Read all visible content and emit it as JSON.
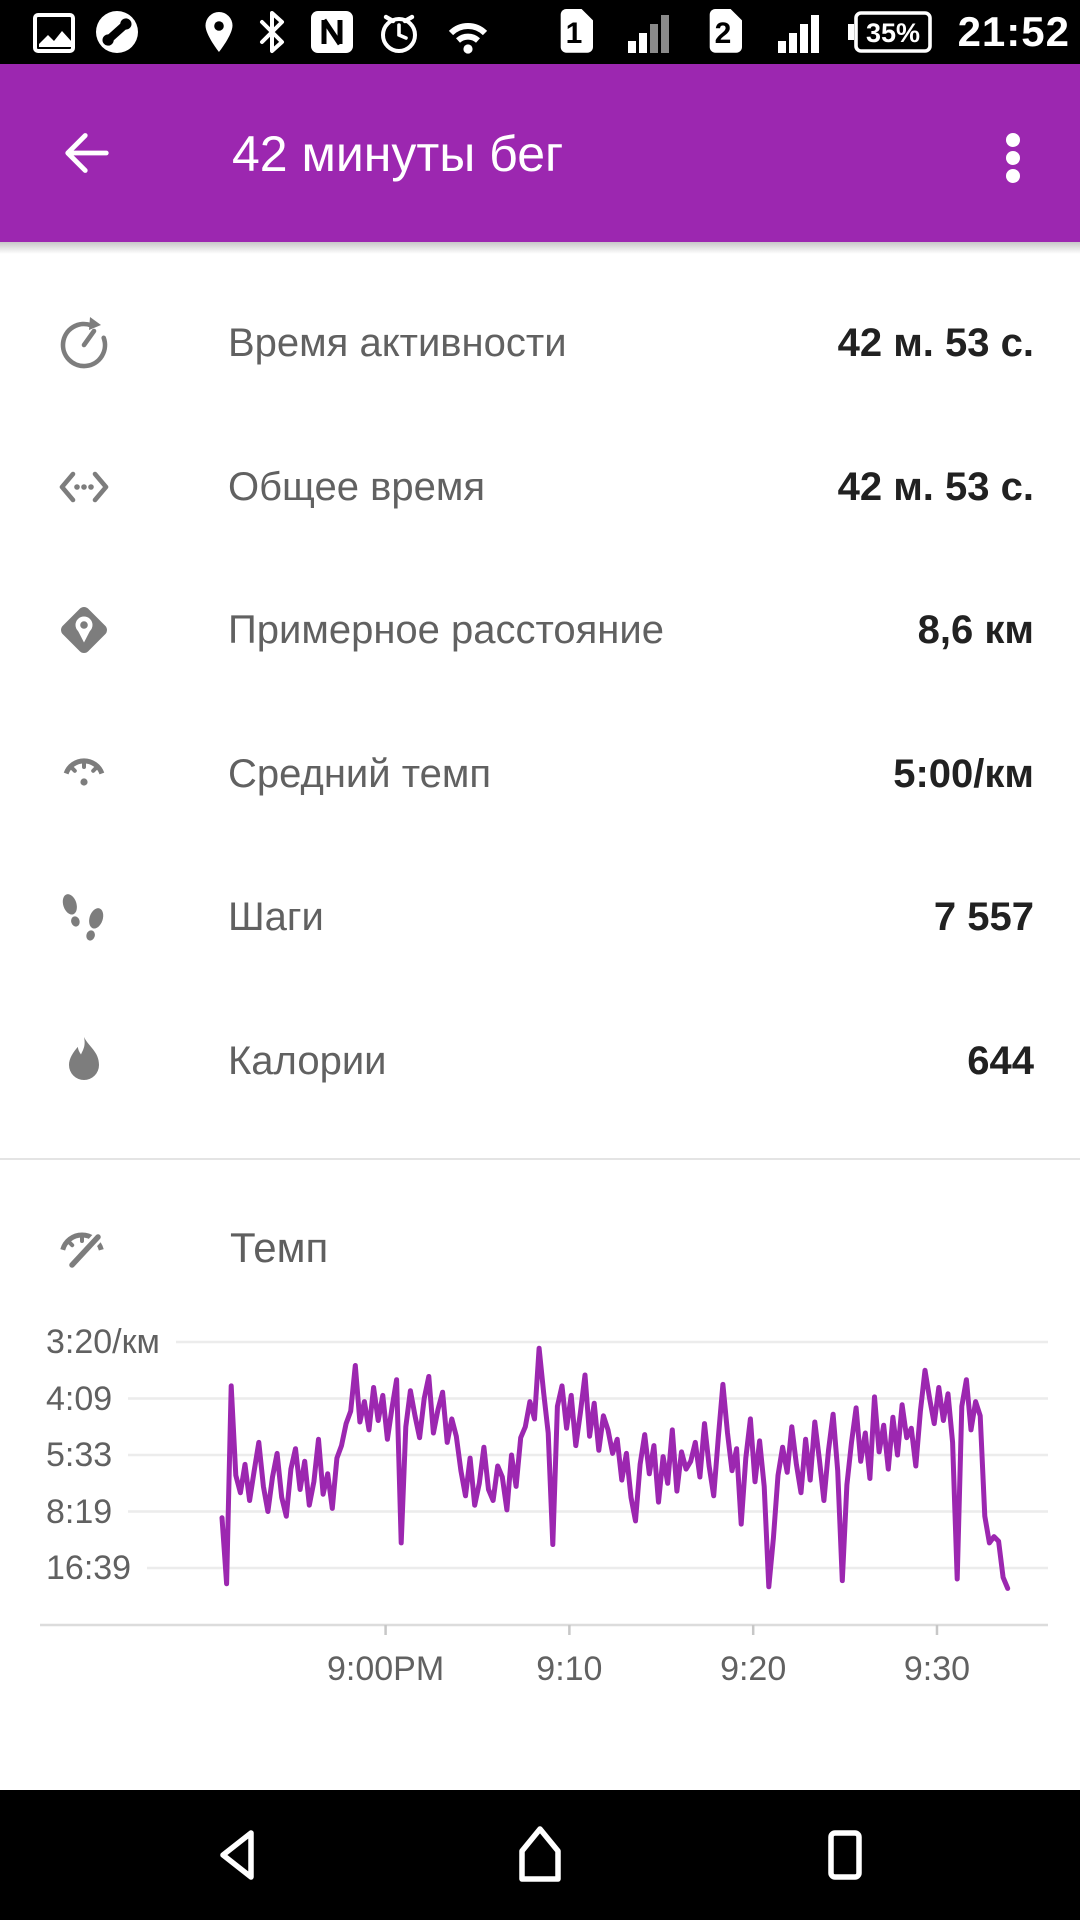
{
  "app": {
    "title": "42 минуты бег"
  },
  "status_bar": {
    "time": "21:52",
    "battery_percent": "35%",
    "sim1_label": "1",
    "sim2_label": "2",
    "sim1_signal_bars": 2,
    "sim2_signal_bars": 4,
    "icons": [
      "gallery-icon",
      "phone-icon",
      "location-icon",
      "bluetooth-icon",
      "nfc-icon",
      "alarm-icon",
      "wifi-icon"
    ]
  },
  "stats": [
    {
      "icon": "activity-timer-icon",
      "label": "Время активности",
      "value": "42 м. 53 с."
    },
    {
      "icon": "total-time-icon",
      "label": "Общее время",
      "value": "42 м. 53 с."
    },
    {
      "icon": "distance-pin-icon",
      "label": "Примерное расстояние",
      "value": "8,6 км"
    },
    {
      "icon": "speedometer-icon",
      "label": "Средний темп",
      "value": "5:00/км"
    },
    {
      "icon": "footsteps-icon",
      "label": "Шаги",
      "value": "7 557"
    },
    {
      "icon": "flame-icon",
      "label": "Калории",
      "value": "644"
    }
  ],
  "chart_section": {
    "icon": "pace-gauge-icon",
    "title": "Темп"
  },
  "chart_data": {
    "type": "line",
    "title": "Темп",
    "line_color": "#9C27B0",
    "grid": true,
    "legend": "none",
    "y_axis": {
      "kind": "pace-per-km (spaced linearly in speed)",
      "ticks": [
        {
          "label": "3:20/км",
          "speed_kmh": 18.0
        },
        {
          "label": "4:09",
          "speed_kmh": 14.4
        },
        {
          "label": "5:33",
          "speed_kmh": 10.8
        },
        {
          "label": "8:19",
          "speed_kmh": 7.2
        },
        {
          "label": "16:39",
          "speed_kmh": 3.6
        }
      ]
    },
    "x_axis": {
      "ticks": [
        {
          "label": "9:00PM",
          "t_min": 8.9
        },
        {
          "label": "9:10",
          "t_min": 18.9
        },
        {
          "label": "9:20",
          "t_min": 28.9
        },
        {
          "label": "9:30",
          "t_min": 38.9
        }
      ]
    },
    "series": {
      "name": "Темп",
      "dt_min": 0.25,
      "speeds_kmh": [
        6.8,
        2.6,
        15.2,
        9.5,
        8.4,
        10.2,
        7.9,
        9.8,
        11.6,
        8.8,
        7.2,
        9.4,
        10.9,
        8.1,
        6.9,
        9.9,
        11.2,
        8.6,
        10.4,
        7.6,
        9.1,
        11.8,
        8.3,
        9.6,
        7.4,
        10.6,
        11.4,
        12.8,
        13.6,
        16.5,
        12.9,
        14.2,
        12.4,
        15.1,
        13.0,
        14.6,
        11.8,
        13.8,
        15.6,
        5.2,
        12.6,
        14.9,
        13.3,
        11.9,
        14.4,
        15.8,
        12.2,
        13.7,
        14.8,
        11.6,
        13.1,
        12.0,
        9.8,
        8.2,
        10.6,
        7.6,
        9.0,
        11.3,
        8.6,
        7.9,
        10.1,
        9.4,
        7.3,
        10.8,
        8.8,
        11.9,
        12.6,
        14.2,
        13.1,
        17.6,
        14.8,
        12.2,
        5.1,
        13.9,
        15.2,
        12.5,
        14.6,
        11.4,
        13.5,
        15.9,
        12.0,
        14.1,
        11.1,
        13.3,
        12.4,
        10.9,
        11.8,
        9.2,
        10.9,
        8.1,
        6.6,
        10.2,
        12.1,
        9.6,
        11.4,
        7.8,
        10.7,
        9.0,
        12.4,
        8.5,
        11.0,
        9.9,
        10.4,
        11.6,
        9.4,
        12.8,
        10.1,
        8.2,
        11.9,
        15.3,
        12.2,
        9.8,
        11.2,
        6.4,
        10.6,
        13.1,
        9.1,
        11.7,
        8.8,
        2.4,
        5.5,
        9.5,
        11.3,
        9.7,
        12.6,
        10.2,
        8.4,
        11.8,
        9.2,
        12.9,
        10.5,
        7.9,
        11.1,
        13.4,
        9.8,
        2.8,
        8.9,
        11.6,
        13.8,
        10.4,
        12.2,
        9.3,
        14.5,
        11.0,
        12.7,
        9.9,
        13.2,
        10.8,
        14.0,
        11.9,
        12.5,
        10.1,
        13.6,
        16.2,
        14.4,
        12.8,
        15.1,
        13.0,
        14.7,
        11.6,
        2.9,
        13.9,
        15.6,
        12.4,
        14.2,
        13.3,
        6.9,
        5.2,
        5.6,
        5.3,
        3.0,
        2.3
      ]
    }
  },
  "nav_bar": {
    "icons": [
      "back-nav-icon",
      "home-nav-icon",
      "recents-nav-icon"
    ]
  },
  "colors": {
    "accent": "#9C27B0",
    "status_bar": "#000000",
    "label_text": "#616161",
    "value_text": "#212121",
    "grid_line": "#ececec",
    "axis_line": "#dcdcdc"
  }
}
